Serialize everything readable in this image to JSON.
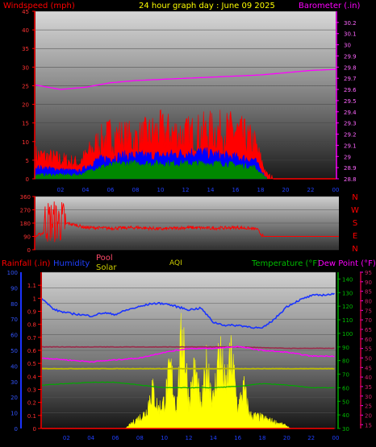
{
  "header": {
    "wind_label": "Windspeed (mph)",
    "title": "24 hour graph day : June 09 2025",
    "baro_label": "Barometer (.in)"
  },
  "bottom_header": {
    "rain_label": "Rainfall (.in)",
    "humidity_label": "Humidity",
    "pool_label": "Pool",
    "solar_label": "Solar",
    "aqi_label": "AQI",
    "temp_label": "Temperature (°F)",
    "dew_label": "Dew Point (°F)"
  },
  "colors": {
    "wind": "#ff0000",
    "gust": "#0000ff",
    "avg_wind": "#008800",
    "barometer": "#ff00ff",
    "direction": "#ff0000",
    "humidity": "#1a33ff",
    "pool": "#9a2a4a",
    "solar": "#ffff00",
    "aqi": "#bbbb00",
    "temperature": "#00aa00",
    "dew_point": "#ff00ff",
    "rain": "#ff0000"
  },
  "chart_data": [
    {
      "type": "area",
      "name": "wind-barometer",
      "title": "24 hour graph day : June 09 2025",
      "x_ticks": [
        "02",
        "04",
        "06",
        "08",
        "10",
        "12",
        "14",
        "16",
        "18",
        "20",
        "22",
        "00"
      ],
      "left_axis": {
        "label": "Windspeed (mph)",
        "ticks": [
          0,
          5,
          10,
          15,
          20,
          25,
          30,
          35,
          40,
          45
        ],
        "range": [
          0,
          45
        ]
      },
      "right_axis": {
        "label": "Barometer (.in)",
        "ticks": [
          28.8,
          28.9,
          29.0,
          29.1,
          29.2,
          29.3,
          29.4,
          29.5,
          29.6,
          29.7,
          29.8,
          29.9,
          30.0,
          30.1,
          30.2
        ],
        "tick_labels": [
          "28.8",
          "28.9",
          "29",
          "29.1",
          "29.2",
          "29.3",
          "29.4",
          "29.5",
          "29.6",
          "29.7",
          "29.8",
          "29.9",
          "30",
          "30.1",
          "30.2"
        ],
        "range": [
          28.8,
          30.3
        ]
      },
      "barometer": [
        [
          0,
          29.64
        ],
        [
          2,
          29.6
        ],
        [
          4,
          29.62
        ],
        [
          6,
          29.66
        ],
        [
          8,
          29.68
        ],
        [
          10,
          29.69
        ],
        [
          12,
          29.7
        ],
        [
          14,
          29.71
        ],
        [
          16,
          29.72
        ],
        [
          18,
          29.73
        ],
        [
          20,
          29.75
        ],
        [
          22,
          29.77
        ],
        [
          24,
          29.78
        ]
      ],
      "windspeed_envelope": [
        [
          0,
          6
        ],
        [
          3.5,
          4
        ],
        [
          5,
          9
        ],
        [
          6,
          11
        ],
        [
          8,
          10
        ],
        [
          10,
          12
        ],
        [
          12,
          11
        ],
        [
          14,
          12
        ],
        [
          16,
          12
        ],
        [
          17.5,
          9
        ],
        [
          18.5,
          1
        ],
        [
          19,
          0
        ]
      ],
      "gust_envelope": [
        [
          0,
          3
        ],
        [
          3.5,
          2
        ],
        [
          5,
          5
        ],
        [
          7,
          6
        ],
        [
          10,
          6
        ],
        [
          13,
          7
        ],
        [
          15,
          6
        ],
        [
          17.5,
          5
        ],
        [
          18.5,
          0
        ]
      ],
      "avg_wind_envelope": [
        [
          0,
          1
        ],
        [
          3.5,
          1
        ],
        [
          5,
          3
        ],
        [
          7,
          4
        ],
        [
          10,
          4
        ],
        [
          13,
          4
        ],
        [
          15,
          4
        ],
        [
          17.5,
          3
        ],
        [
          18.5,
          0
        ]
      ]
    },
    {
      "type": "scatter",
      "name": "wind-direction",
      "x_ticks": [
        "02",
        "04",
        "06",
        "08",
        "10",
        "12",
        "14",
        "16",
        "18",
        "20",
        "22",
        "00"
      ],
      "left_axis": {
        "ticks": [
          0,
          90,
          180,
          270,
          360
        ],
        "range": [
          0,
          360
        ]
      },
      "compass_labels": [
        "N",
        "W",
        "S",
        "E",
        "N"
      ],
      "direction": [
        [
          0,
          90
        ],
        [
          1,
          130
        ],
        [
          1.6,
          260
        ],
        [
          2,
          120
        ],
        [
          2.5,
          180
        ],
        [
          4,
          150
        ],
        [
          6,
          145
        ],
        [
          8,
          150
        ],
        [
          10,
          140
        ],
        [
          12,
          150
        ],
        [
          14,
          145
        ],
        [
          16,
          150
        ],
        [
          17.5,
          140
        ],
        [
          18,
          90
        ],
        [
          24,
          90
        ]
      ]
    },
    {
      "type": "line",
      "name": "multi-sensor",
      "x_ticks": [
        "02",
        "04",
        "06",
        "08",
        "10",
        "12",
        "14",
        "16",
        "18",
        "20",
        "22",
        "00"
      ],
      "humidity_axis": {
        "ticks": [
          0,
          10,
          20,
          30,
          40,
          50,
          60,
          70,
          80,
          90,
          100
        ],
        "range": [
          0,
          100
        ]
      },
      "rain_axis": {
        "ticks": [
          0,
          0.1,
          0.2,
          0.3,
          0.4,
          0.5,
          0.6,
          0.7,
          0.8,
          0.9,
          1,
          1.1
        ],
        "tick_labels": [
          "0",
          "0.1",
          "0.2",
          "0.3",
          "0.4",
          "0.5",
          "0.6",
          "0.7",
          "0.8",
          "0.9",
          "1",
          "1.1"
        ],
        "range": [
          0,
          1.2
        ]
      },
      "temp_axis": {
        "ticks": [
          30,
          40,
          50,
          60,
          70,
          80,
          90,
          100,
          110,
          120,
          130,
          140
        ],
        "range": [
          30,
          145
        ]
      },
      "dew_axis": {
        "ticks": [
          15,
          20,
          25,
          30,
          35,
          40,
          45,
          50,
          55,
          60,
          65,
          70,
          75,
          80,
          85,
          90,
          95
        ],
        "range": [
          13,
          95
        ]
      },
      "humidity": [
        [
          0,
          83
        ],
        [
          1,
          76
        ],
        [
          2,
          74
        ],
        [
          3,
          73
        ],
        [
          4,
          72
        ],
        [
          5,
          74
        ],
        [
          6,
          73
        ],
        [
          7,
          76
        ],
        [
          8,
          78
        ],
        [
          9,
          80
        ],
        [
          10,
          80
        ],
        [
          11,
          78
        ],
        [
          12,
          76
        ],
        [
          13,
          77
        ],
        [
          14,
          68
        ],
        [
          15,
          66
        ],
        [
          16,
          66
        ],
        [
          17,
          65
        ],
        [
          18,
          64
        ],
        [
          19,
          70
        ],
        [
          20,
          78
        ],
        [
          21,
          82
        ],
        [
          22,
          85
        ],
        [
          24,
          86
        ]
      ],
      "temperature": [
        [
          0,
          62
        ],
        [
          2,
          63
        ],
        [
          4,
          64
        ],
        [
          6,
          64
        ],
        [
          8,
          62
        ],
        [
          10,
          60
        ],
        [
          12,
          60
        ],
        [
          14,
          60
        ],
        [
          16,
          61
        ],
        [
          18,
          63
        ],
        [
          20,
          62
        ],
        [
          22,
          60
        ],
        [
          24,
          60
        ]
      ],
      "pool": [
        [
          0,
          90
        ],
        [
          4,
          90
        ],
        [
          8,
          90
        ],
        [
          12,
          90
        ],
        [
          16,
          90
        ],
        [
          20,
          89
        ],
        [
          24,
          89
        ]
      ],
      "aqi": [
        [
          0,
          74
        ],
        [
          4,
          74
        ],
        [
          8,
          74
        ],
        [
          12,
          74
        ],
        [
          16,
          74
        ],
        [
          20,
          74
        ],
        [
          24,
          74
        ]
      ],
      "dew_point": [
        [
          0,
          50
        ],
        [
          2,
          49
        ],
        [
          4,
          48
        ],
        [
          6,
          49
        ],
        [
          8,
          50
        ],
        [
          10,
          53
        ],
        [
          12,
          55
        ],
        [
          14,
          55
        ],
        [
          16,
          56
        ],
        [
          18,
          54
        ],
        [
          20,
          53
        ],
        [
          22,
          51
        ],
        [
          24,
          51
        ]
      ],
      "solar_envelope": [
        [
          6.8,
          0
        ],
        [
          7.5,
          0.05
        ],
        [
          8.5,
          0.12
        ],
        [
          9,
          0.3
        ],
        [
          9.5,
          0.15
        ],
        [
          10,
          0.2
        ],
        [
          10.5,
          0.45
        ],
        [
          11,
          0.15
        ],
        [
          11.5,
          0.8
        ],
        [
          12,
          0.2
        ],
        [
          12.5,
          0.45
        ],
        [
          13,
          0.15
        ],
        [
          13.5,
          0.5
        ],
        [
          14,
          0.2
        ],
        [
          14.5,
          0.6
        ],
        [
          15,
          0.3
        ],
        [
          15.5,
          0.55
        ],
        [
          16,
          0.15
        ],
        [
          16.5,
          0.3
        ],
        [
          17,
          0.1
        ],
        [
          18,
          0.08
        ],
        [
          19,
          0.05
        ],
        [
          20,
          0.02
        ],
        [
          20.3,
          0
        ]
      ],
      "rainfall": [
        [
          0,
          0
        ],
        [
          24,
          0
        ]
      ]
    }
  ]
}
